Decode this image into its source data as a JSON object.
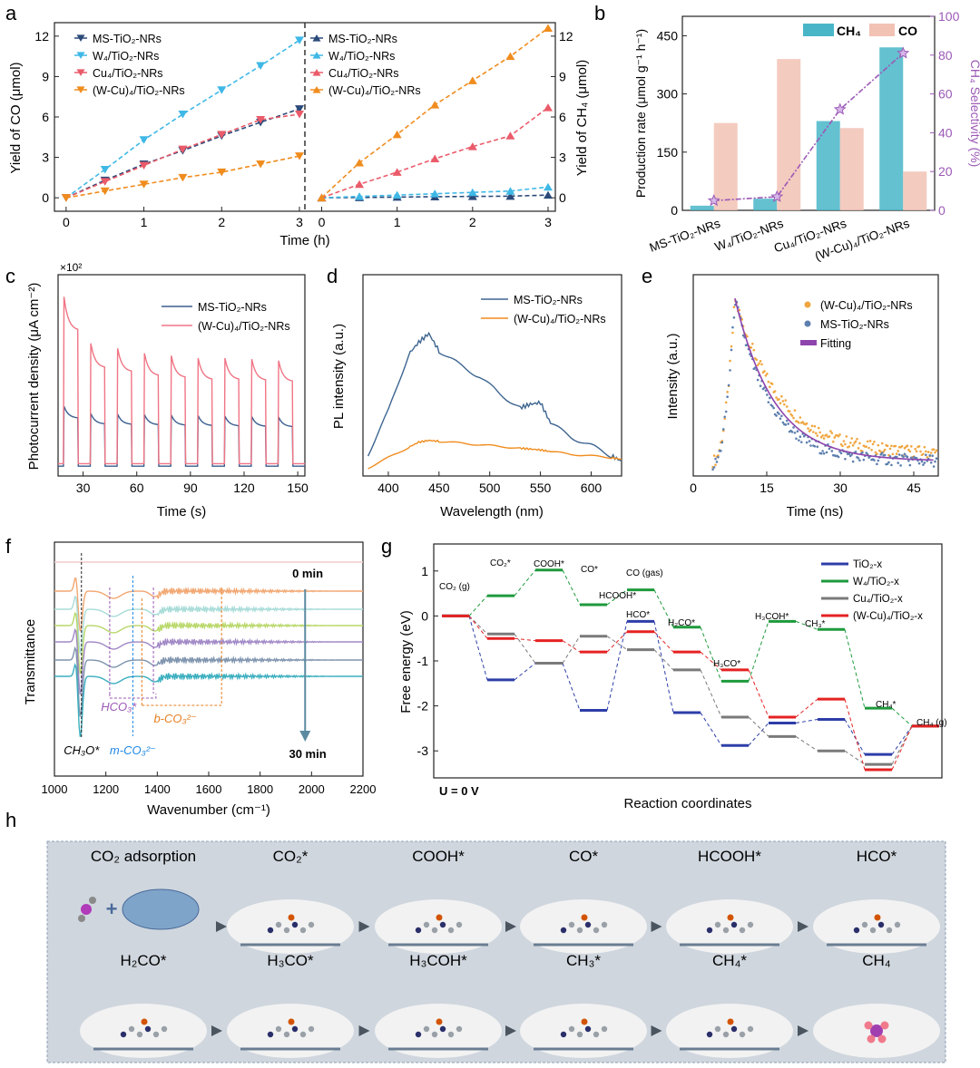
{
  "panels": {
    "a": "a",
    "b": "b",
    "c": "c",
    "d": "d",
    "e": "e",
    "f": "f",
    "g": "g",
    "h": "h"
  },
  "colors": {
    "ms": "#2b4a7a",
    "w4": "#3fb8e6",
    "cu4": "#ea5b6a",
    "wcu4": "#f08c1e",
    "wcu_c": "#f07585",
    "ms_c": "#3a5f8e",
    "pl_ms": "#3e6590",
    "pl_wcu": "#f08c1e",
    "ch4bar": "#49b6c8",
    "cobar": "#f2c2b4",
    "sel": "#9b59b6",
    "g_tio2": "#2d3ea8",
    "g_w4": "#1e9a3c",
    "g_cu4": "#7a7a7a",
    "g_wcu4": "#e52222"
  },
  "chart_data": [
    {
      "id": "a-left",
      "type": "line",
      "title": "",
      "xlabel": "Time (h)",
      "ylabel": "Yield of CO (μmol)",
      "xlim": [
        -0.15,
        3.0
      ],
      "ylim": [
        -1,
        13
      ],
      "xticks": [
        "0",
        "1",
        "2",
        "3"
      ],
      "yticks": [
        "0",
        "3",
        "6",
        "9",
        "12"
      ],
      "x": [
        0,
        0.5,
        1,
        1.5,
        2,
        2.5,
        3
      ],
      "series": [
        {
          "name": "MS-TiO₂-NRs",
          "values": [
            0,
            1.3,
            2.5,
            3.5,
            4.6,
            5.6,
            6.6
          ],
          "marker": "down"
        },
        {
          "name": "W₄/TiO₂-NRs",
          "values": [
            0,
            2.1,
            4.3,
            6.2,
            8.0,
            9.8,
            11.7
          ],
          "marker": "down"
        },
        {
          "name": "Cu₄/TiO₂-NRs",
          "values": [
            0,
            1.2,
            2.4,
            3.6,
            4.7,
            5.8,
            6.2
          ],
          "marker": "down"
        },
        {
          "name": "(W-Cu)₄/TiO₂-NRs",
          "values": [
            0,
            0.5,
            1.0,
            1.5,
            1.9,
            2.5,
            3.1
          ],
          "marker": "down"
        }
      ]
    },
    {
      "id": "a-right",
      "type": "line",
      "title": "",
      "xlabel": "",
      "ylabel": "Yield of CH₄ (μmol)",
      "xlim": [
        -0.15,
        3.0
      ],
      "ylim": [
        -1,
        13
      ],
      "xticks": [
        "0",
        "1",
        "2",
        "3"
      ],
      "yticks": [
        "0",
        "3",
        "6",
        "9",
        "12"
      ],
      "x": [
        0,
        0.5,
        1,
        1.5,
        2,
        2.5,
        3
      ],
      "series": [
        {
          "name": "MS-TiO₂-NRs",
          "values": [
            0,
            0.02,
            0.05,
            0.08,
            0.1,
            0.12,
            0.2
          ],
          "marker": "up"
        },
        {
          "name": "W₄/TiO₂-NRs",
          "values": [
            0,
            0.1,
            0.2,
            0.3,
            0.4,
            0.5,
            0.8
          ],
          "marker": "up"
        },
        {
          "name": "Cu₄/TiO₂-NRs",
          "values": [
            0,
            1.0,
            1.9,
            2.9,
            3.8,
            4.6,
            6.7
          ],
          "marker": "up"
        },
        {
          "name": "(W-Cu)₄/TiO₂-NRs",
          "values": [
            0,
            2.6,
            4.7,
            6.9,
            8.7,
            10.5,
            12.6
          ],
          "marker": "up"
        }
      ]
    },
    {
      "id": "b",
      "type": "bar",
      "title": "",
      "categories": [
        "MS-TiO₂-NRs",
        "W₄/TiO₂-NRs",
        "Cu₄/TiO₂-NRs",
        "(W-Cu)₄/TiO₂-NRs"
      ],
      "series": [
        {
          "name": "CH₄",
          "values": [
            12,
            30,
            230,
            420
          ]
        },
        {
          "name": "CO",
          "values": [
            225,
            390,
            212,
            100
          ]
        }
      ],
      "selectivity": {
        "name": "CH₄ Selectivity (%)",
        "values": [
          5,
          7,
          52,
          81
        ]
      },
      "ylabel": "Production rate (μmol g⁻¹ h⁻¹)",
      "y2label": "CH₄ Selectivity (%)",
      "ylim": [
        0,
        500
      ],
      "y2lim": [
        0,
        100
      ],
      "yticks": [
        "0",
        "150",
        "300",
        "450"
      ],
      "y2ticks": [
        "0",
        "20",
        "40",
        "60",
        "80",
        "100"
      ]
    },
    {
      "id": "c",
      "type": "line",
      "title": "",
      "xlabel": "Time (s)",
      "ylabel": "Photocurrent density (μA cm⁻²)",
      "scale_label": "×10²",
      "xlim": [
        16,
        154
      ],
      "ylim": [
        -0.2,
        3.9
      ],
      "xticks": [
        "30",
        "60",
        "90",
        "120",
        "150"
      ],
      "on_periods": [
        [
          19,
          27
        ],
        [
          34,
          42
        ],
        [
          49,
          57
        ],
        [
          64,
          72
        ],
        [
          79,
          87
        ],
        [
          94,
          102
        ],
        [
          109,
          117
        ],
        [
          124,
          132
        ],
        [
          139,
          147
        ]
      ],
      "series": [
        {
          "name": "MS-TiO₂-NRs",
          "on_peaks": [
            1.22,
            1.07,
            1.06,
            1.05,
            1.04,
            1.03,
            1.02,
            1.01,
            1.0
          ],
          "off_level": 0.0
        },
        {
          "name": "(W-Cu)₄/TiO₂-NRs",
          "on_peaks": [
            3.45,
            2.5,
            2.4,
            2.3,
            2.25,
            2.2,
            2.2,
            2.18,
            2.15
          ],
          "off_level": 0.05
        }
      ]
    },
    {
      "id": "d",
      "type": "line",
      "title": "",
      "xlabel": "Wavelength (nm)",
      "ylabel": "PL intensity (a.u.)",
      "xlim": [
        375,
        630
      ],
      "ylim": [
        0,
        1
      ],
      "xticks": [
        "400",
        "450",
        "500",
        "550",
        "600"
      ],
      "x": [
        380,
        400,
        420,
        430,
        440,
        450,
        470,
        490,
        510,
        530,
        540,
        550,
        560,
        580,
        600,
        620,
        630
      ],
      "series": [
        {
          "name": "MS-TiO₂-NRs",
          "values": [
            0.1,
            0.35,
            0.68,
            0.75,
            0.8,
            0.7,
            0.62,
            0.55,
            0.45,
            0.37,
            0.39,
            0.4,
            0.28,
            0.2,
            0.15,
            0.09,
            0.06
          ]
        },
        {
          "name": "(W-Cu)₄/TiO₂-NRs",
          "values": [
            0.02,
            0.08,
            0.14,
            0.17,
            0.18,
            0.175,
            0.165,
            0.155,
            0.145,
            0.135,
            0.13,
            0.125,
            0.115,
            0.1,
            0.09,
            0.08,
            0.07
          ]
        }
      ]
    },
    {
      "id": "e",
      "type": "scatter",
      "title": "",
      "xlabel": "Time (ns)",
      "ylabel": "Intensity (a.u.)",
      "xlim": [
        0,
        50
      ],
      "ylim": [
        0,
        1.1
      ],
      "xticks": [
        "0",
        "15",
        "30",
        "45"
      ],
      "peak_time": 8.5,
      "series": [
        {
          "name": "(W-Cu)₄/TiO₂-NRs",
          "tau_ns": 9,
          "floor": 0.1
        },
        {
          "name": "MS-TiO₂-NRs",
          "tau_ns": 7,
          "floor": 0.06
        },
        {
          "name": "Fitting",
          "tau_ns": 8,
          "floor": 0.06
        }
      ]
    },
    {
      "id": "f",
      "type": "line",
      "title": "",
      "xlabel": "Wavenumber (cm⁻¹)",
      "ylabel": "Transmittance",
      "xlim": [
        1000,
        2200
      ],
      "xticks": [
        "1000",
        "1200",
        "1400",
        "1600",
        "1800",
        "2000",
        "2200"
      ],
      "time_start": "0 min",
      "time_end": "30 min",
      "curve_colors": [
        "#f3cbc8",
        "#f2a772",
        "#a8dcd8",
        "#b9d86a",
        "#a088c6",
        "#7e93ad",
        "#3aaebf"
      ],
      "annotations": [
        "CH₃O*",
        "HCO₃*",
        "m-CO₃²⁻",
        "b-CO₃²⁻"
      ]
    },
    {
      "id": "g",
      "type": "line",
      "title": "",
      "xlabel": "Reaction coordinates",
      "ylabel": "Free energy (eV)",
      "note": "U = 0 V",
      "ylim": [
        -3.5,
        1.5
      ],
      "yticks": [
        "1",
        "0",
        "-1",
        "-2",
        "-3"
      ],
      "states": [
        "CO₂ (g)",
        "CO₂*",
        "COOH*",
        "CO*",
        "CO (gas)",
        "HCOOH*",
        "HCO*",
        "H₂CO*",
        "H₃CO*",
        "H₃COH*",
        "CH₃*",
        "CH₄*",
        "CH₄ (g)"
      ],
      "series": [
        {
          "name": "TiO₂-x",
          "values": [
            0,
            -1.42,
            -1.05,
            -2.1,
            -0.12,
            -2.15,
            -2.88,
            -2.38,
            -2.3,
            -3.08,
            -2.45
          ]
        },
        {
          "name": "W₄/TiO₂-x",
          "values": [
            0,
            0.45,
            1.02,
            0.25,
            0.58,
            -0.25,
            -1.45,
            -0.12,
            -0.3,
            -2.05,
            -2.45
          ]
        },
        {
          "name": "Cu₄/TiO₂-x",
          "values": [
            0,
            -0.4,
            -1.05,
            -0.45,
            -0.75,
            -1.2,
            -2.25,
            -2.68,
            -3.0,
            -3.3,
            -2.45
          ]
        },
        {
          "name": "(W-Cu)₄/TiO₂-x",
          "values": [
            0,
            -0.5,
            -0.55,
            -0.8,
            -0.35,
            -0.8,
            -1.2,
            -2.25,
            -1.85,
            -3.42,
            -2.45
          ]
        }
      ],
      "labels_above": [
        "CO₂ (g)",
        "CO₂*",
        "COOH*",
        "CO*",
        "CO (gas)",
        "HCOOH*",
        "HCO*",
        "H₂CO*",
        "H₃CO*",
        "H₃COH*",
        "CH₃*",
        "CH₄*",
        "CH₄ (g)"
      ]
    }
  ],
  "panel_h": {
    "row1": [
      "CO₂ adsorption",
      "CO₂*",
      "COOH*",
      "CO*",
      "HCOOH*",
      "HCO*"
    ],
    "row2": [
      "H₂CO*",
      "H₃CO*",
      "H₃COH*",
      "CH₃*",
      "CH₄*",
      "CH₄"
    ]
  }
}
